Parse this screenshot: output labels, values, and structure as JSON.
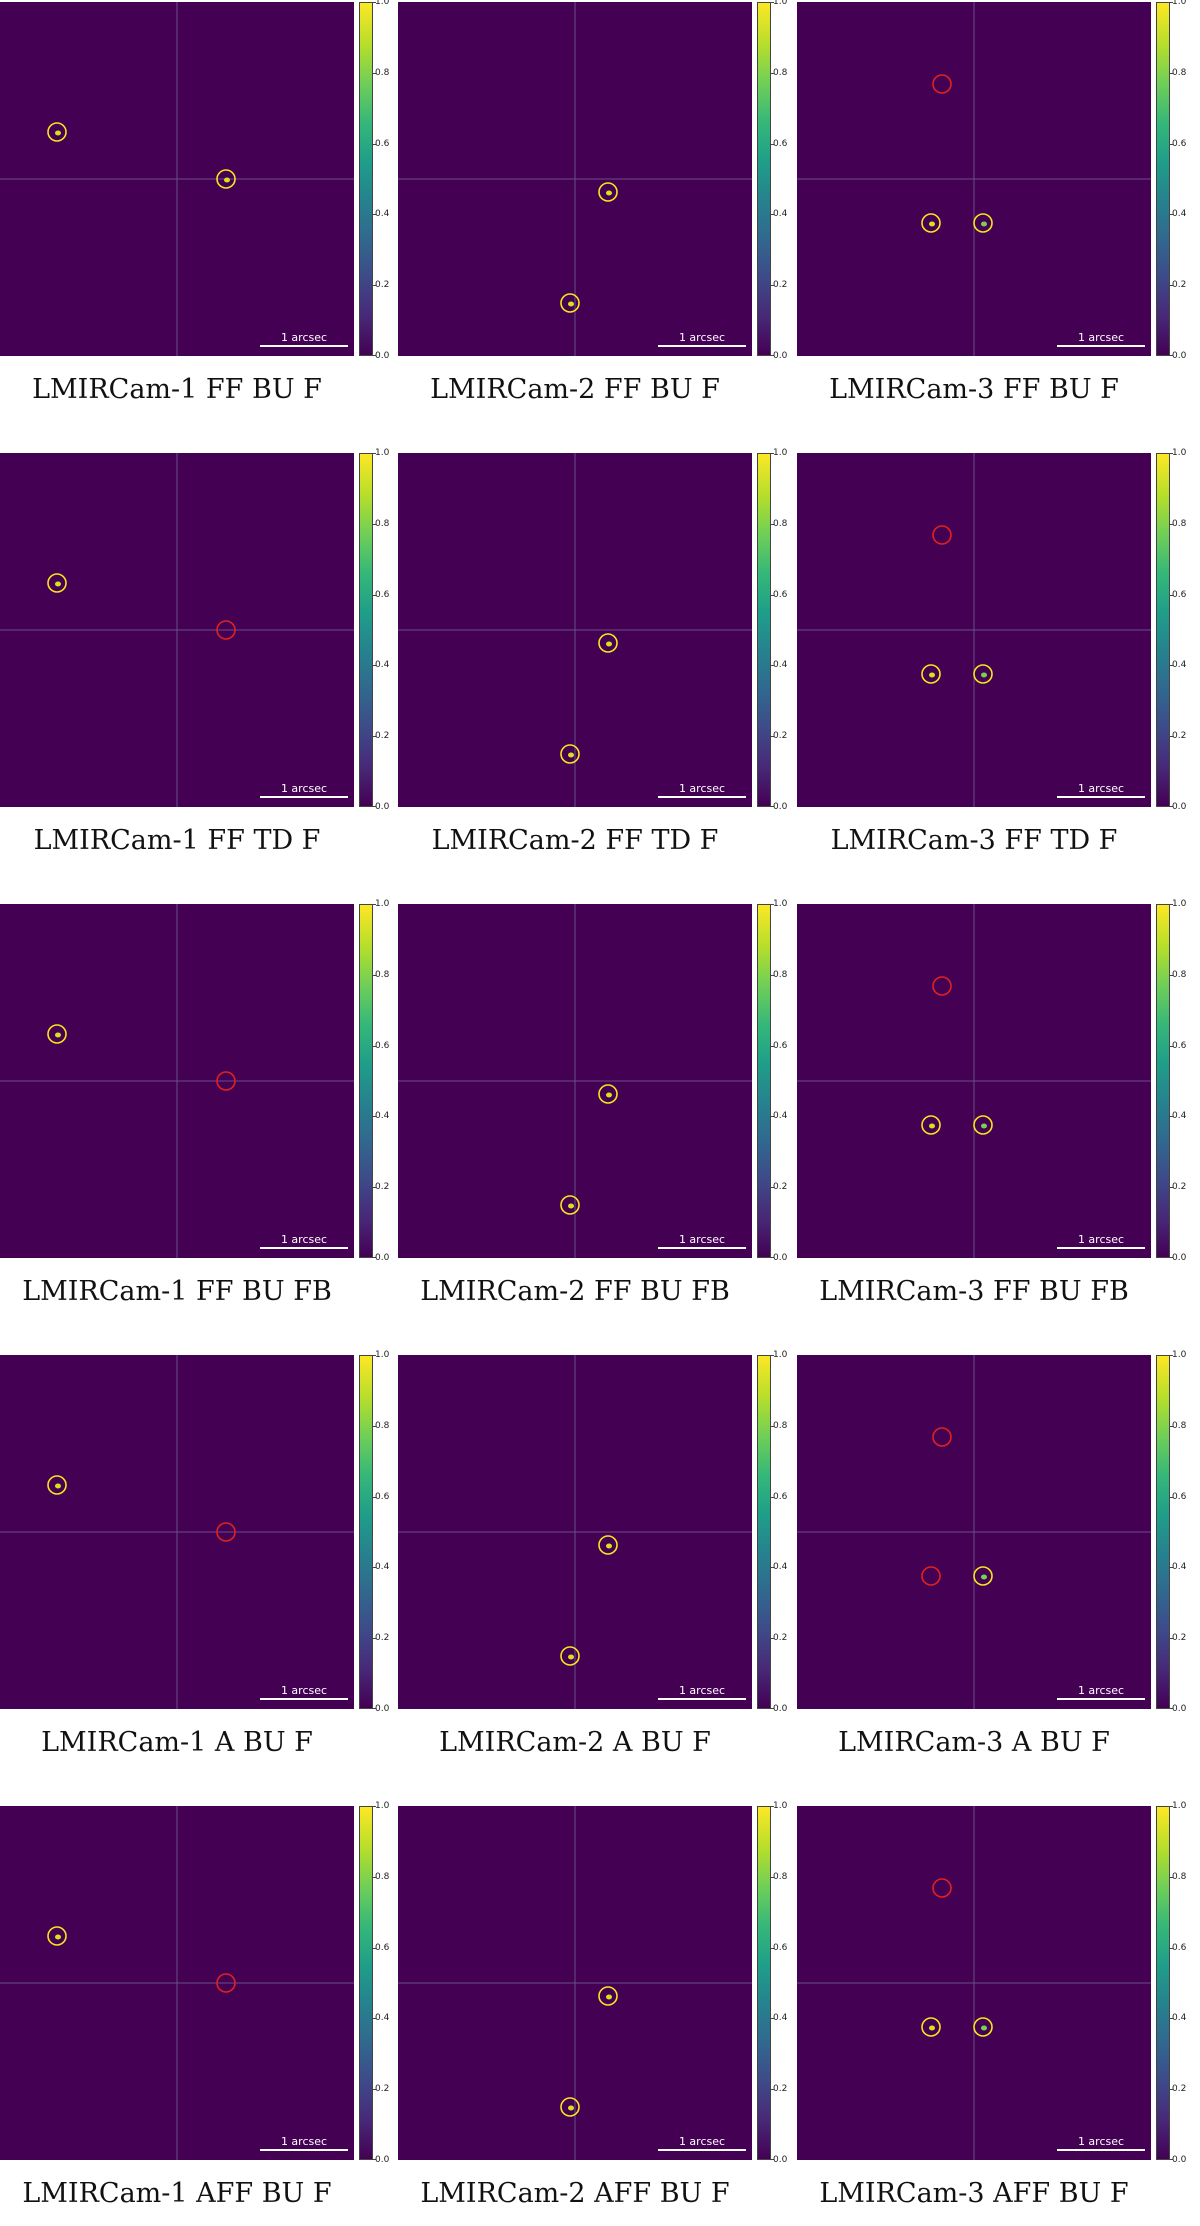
{
  "chart_data": {
    "type": "heatmap",
    "colormap": "viridis",
    "grid": "5 rows x 3 columns",
    "crosshair": true,
    "colorbar": {
      "ticks": [
        "0.0",
        "0.2",
        "0.4",
        "0.6",
        "0.8",
        "1.0"
      ],
      "range": [
        0.0,
        1.0
      ]
    },
    "scalebar_label": "1 arcsec",
    "marker_colors": {
      "detected": "#f5e61e",
      "missed": "#e0221e"
    },
    "panels": [
      {
        "caption": "LMIRCam-1 FF BU F",
        "markers": [
          {
            "status": "detected"
          },
          {
            "status": "detected"
          }
        ]
      },
      {
        "caption": "LMIRCam-2 FF BU F",
        "markers": [
          {
            "status": "detected"
          },
          {
            "status": "detected"
          }
        ]
      },
      {
        "caption": "LMIRCam-3 FF BU F",
        "markers": [
          {
            "status": "missed"
          },
          {
            "status": "detected"
          },
          {
            "status": "detected"
          }
        ]
      },
      {
        "caption": "LMIRCam-1 FF TD F",
        "markers": [
          {
            "status": "detected"
          },
          {
            "status": "missed"
          }
        ]
      },
      {
        "caption": "LMIRCam-2 FF TD F",
        "markers": [
          {
            "status": "detected"
          },
          {
            "status": "detected"
          }
        ]
      },
      {
        "caption": "LMIRCam-3 FF TD F",
        "markers": [
          {
            "status": "missed"
          },
          {
            "status": "detected"
          },
          {
            "status": "detected"
          }
        ]
      },
      {
        "caption": "LMIRCam-1 FF BU FB",
        "markers": [
          {
            "status": "detected"
          },
          {
            "status": "missed"
          }
        ]
      },
      {
        "caption": "LMIRCam-2 FF BU FB",
        "markers": [
          {
            "status": "detected"
          },
          {
            "status": "detected"
          }
        ]
      },
      {
        "caption": "LMIRCam-3 FF BU FB",
        "markers": [
          {
            "status": "missed"
          },
          {
            "status": "detected"
          },
          {
            "status": "detected"
          }
        ]
      },
      {
        "caption": "LMIRCam-1 A BU F",
        "markers": [
          {
            "status": "detected"
          },
          {
            "status": "missed"
          }
        ]
      },
      {
        "caption": "LMIRCam-2 A BU F",
        "markers": [
          {
            "status": "detected"
          },
          {
            "status": "detected"
          }
        ]
      },
      {
        "caption": "LMIRCam-3 A BU F",
        "markers": [
          {
            "status": "missed"
          },
          {
            "status": "missed"
          },
          {
            "status": "detected"
          }
        ]
      },
      {
        "caption": "LMIRCam-1 AFF BU F",
        "markers": [
          {
            "status": "detected"
          },
          {
            "status": "missed"
          }
        ]
      },
      {
        "caption": "LMIRCam-2 AFF BU F",
        "markers": [
          {
            "status": "detected"
          },
          {
            "status": "detected"
          }
        ]
      },
      {
        "caption": "LMIRCam-3 AFF BU F",
        "markers": [
          {
            "status": "missed"
          },
          {
            "status": "detected"
          },
          {
            "status": "detected"
          }
        ]
      }
    ]
  }
}
